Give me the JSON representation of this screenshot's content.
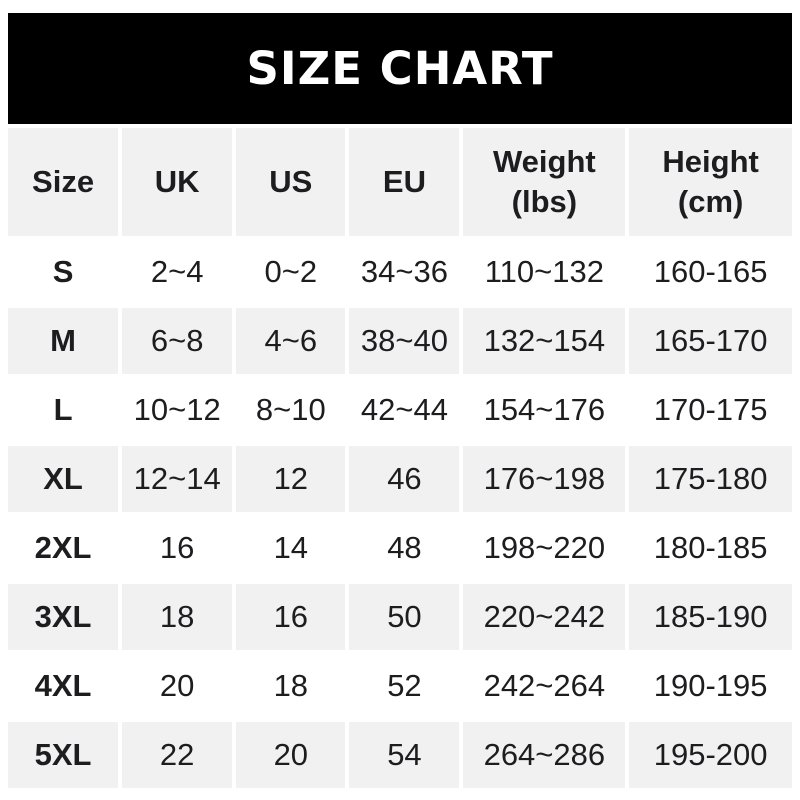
{
  "page": {
    "background_color": "#ffffff",
    "text_color": "#1d1d1f"
  },
  "banner": {
    "title": "SIZE CHART",
    "background_color": "#000000",
    "text_color": "#ffffff"
  },
  "table": {
    "stripe_color": "#f1f1f2",
    "gutter_color": "#ffffff",
    "columns": [
      {
        "key": "size",
        "label": "Size"
      },
      {
        "key": "uk",
        "label": "UK"
      },
      {
        "key": "us",
        "label": "US"
      },
      {
        "key": "eu",
        "label": "EU"
      },
      {
        "key": "weight",
        "label": "Weight",
        "label2": "(lbs)"
      },
      {
        "key": "height",
        "label": "Height",
        "label2": "(cm)"
      }
    ],
    "rows": [
      {
        "size": "S",
        "uk": "2~4",
        "us": "0~2",
        "eu": "34~36",
        "weight": "110~132",
        "height": "160-165"
      },
      {
        "size": "M",
        "uk": "6~8",
        "us": "4~6",
        "eu": "38~40",
        "weight": "132~154",
        "height": "165-170"
      },
      {
        "size": "L",
        "uk": "10~12",
        "us": "8~10",
        "eu": "42~44",
        "weight": "154~176",
        "height": "170-175"
      },
      {
        "size": "XL",
        "uk": "12~14",
        "us": "12",
        "eu": "46",
        "weight": "176~198",
        "height": "175-180"
      },
      {
        "size": "2XL",
        "uk": "16",
        "us": "14",
        "eu": "48",
        "weight": "198~220",
        "height": "180-185"
      },
      {
        "size": "3XL",
        "uk": "18",
        "us": "16",
        "eu": "50",
        "weight": "220~242",
        "height": "185-190"
      },
      {
        "size": "4XL",
        "uk": "20",
        "us": "18",
        "eu": "52",
        "weight": "242~264",
        "height": "190-195"
      },
      {
        "size": "5XL",
        "uk": "22",
        "us": "20",
        "eu": "54",
        "weight": "264~286",
        "height": "195-200"
      }
    ]
  }
}
